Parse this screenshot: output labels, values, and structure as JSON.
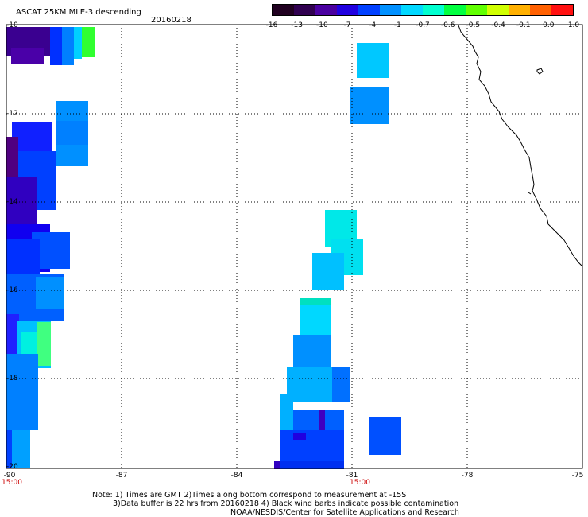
{
  "header": {
    "title": "ASCAT 25KM MLE-3 descending",
    "date": "20160218"
  },
  "colorbar": {
    "labels": [
      "-16",
      "-13",
      "-10",
      "-7",
      "-4",
      "-1",
      "-0.7",
      "-0.6",
      "-0.5",
      "-0.4",
      "-0.1",
      "0.0",
      "1.0"
    ],
    "colors": [
      "#200020",
      "#300050",
      "#4a00a0",
      "#2000e0",
      "#0040ff",
      "#0090ff",
      "#00d8ff",
      "#00ffd0",
      "#00ff40",
      "#60ff00",
      "#d0ff00",
      "#ffb000",
      "#ff6000",
      "#ff1010"
    ]
  },
  "axes": {
    "y_labels": [
      "-10",
      "-12",
      "-14",
      "-16",
      "-18",
      "-20"
    ],
    "x_labels": [
      "-90",
      "-87",
      "-84",
      "-81",
      "-78",
      "-75"
    ],
    "time_labels": [
      "15:00",
      "15:00"
    ]
  },
  "notes": {
    "line1": "Note: 1) Times are GMT 2)Times along bottom correspond to measurement at -15S",
    "line2": "3)Data buffer is 22 hrs from 20160218 4) Black wind barbs indicate possible contamination",
    "line3": "NOAA/NESDIS/Center for Satellite Applications and Research"
  }
}
